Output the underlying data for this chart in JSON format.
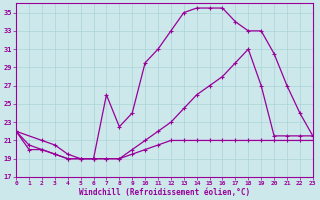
{
  "xlabel": "Windchill (Refroidissement éolien,°C)",
  "bg_color": "#cce8ea",
  "grid_color": "#aad4d8",
  "line_color": "#990099",
  "xlim": [
    0,
    23
  ],
  "ylim": [
    17,
    36
  ],
  "yticks": [
    17,
    19,
    21,
    23,
    25,
    27,
    29,
    31,
    33,
    35
  ],
  "xticks": [
    0,
    1,
    2,
    3,
    4,
    5,
    6,
    7,
    8,
    9,
    10,
    11,
    12,
    13,
    14,
    15,
    16,
    17,
    18,
    19,
    20,
    21,
    22,
    23
  ],
  "curve1_x": [
    0,
    1,
    2,
    3,
    4,
    5,
    6,
    7,
    8,
    9,
    10,
    11,
    12,
    13,
    14,
    15,
    16,
    17,
    18,
    19,
    20,
    21,
    22,
    23
  ],
  "curve1_y": [
    22,
    20,
    20,
    19.5,
    19,
    19,
    19,
    19,
    19,
    19.5,
    20,
    20.5,
    21,
    21,
    21,
    21,
    21,
    21,
    21,
    21,
    21,
    21,
    21,
    21
  ],
  "curve2_x": [
    0,
    1,
    2,
    3,
    4,
    5,
    6,
    7,
    8,
    9,
    10,
    11,
    12,
    13,
    14,
    15,
    16,
    17,
    18,
    19,
    20,
    21,
    22,
    23
  ],
  "curve2_y": [
    22,
    20.5,
    20,
    19.5,
    19,
    19,
    19,
    26,
    22.5,
    24,
    29.5,
    31,
    33,
    35,
    35.5,
    35.5,
    35.5,
    34,
    33,
    33,
    30.5,
    27,
    24,
    21.5
  ],
  "curve3_x": [
    0,
    2,
    3,
    4,
    5,
    6,
    7,
    8,
    9,
    10,
    11,
    12,
    13,
    14,
    15,
    16,
    17,
    18,
    19,
    20,
    21,
    22,
    23
  ],
  "curve3_y": [
    22,
    21,
    20.5,
    19.5,
    19,
    19,
    19,
    19,
    20,
    21,
    22,
    23,
    24.5,
    26,
    27,
    28,
    29.5,
    31,
    27,
    21.5,
    21.5,
    21.5,
    21.5
  ]
}
